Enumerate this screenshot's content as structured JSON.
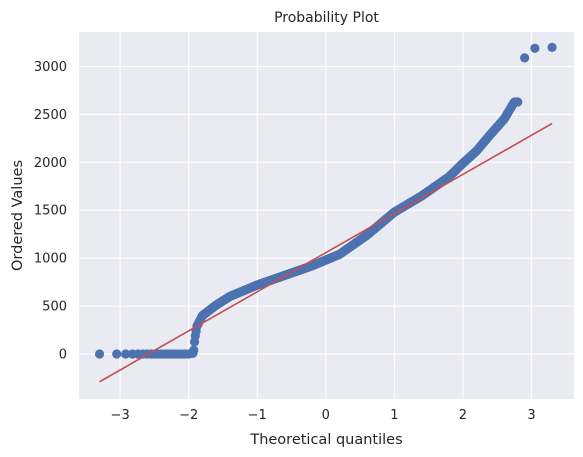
{
  "chart_data": {
    "type": "scatter",
    "title": "Probability Plot",
    "xlabel": "Theoretical quantiles",
    "ylabel": "Ordered Values",
    "xlim": [
      -3.6,
      3.62
    ],
    "ylim": [
      -470,
      3360
    ],
    "x_ticks": [
      -3,
      -2,
      -1,
      0,
      1,
      2,
      3
    ],
    "x_tick_labels": [
      "−3",
      "−2",
      "−1",
      "0",
      "1",
      "2",
      "3"
    ],
    "y_ticks": [
      0,
      500,
      1000,
      1500,
      2000,
      2500,
      3000
    ],
    "y_tick_labels": [
      "0",
      "500",
      "1000",
      "1500",
      "2000",
      "2500",
      "3000"
    ],
    "grid": true,
    "background": "#eaeaf2",
    "marker_color": "#4c72b0",
    "fit_line": {
      "color": "#c44e52",
      "x": [
        -3.3,
        3.3
      ],
      "y": [
        -290,
        2405
      ]
    },
    "curve_knots": [
      [
        -3.3,
        0
      ],
      [
        -2.0,
        0
      ],
      [
        -1.93,
        10
      ],
      [
        -1.91,
        160
      ],
      [
        -1.88,
        290
      ],
      [
        -1.8,
        400
      ],
      [
        -1.6,
        510
      ],
      [
        -1.4,
        600
      ],
      [
        -1.2,
        660
      ],
      [
        -1.0,
        720
      ],
      [
        -0.6,
        820
      ],
      [
        -0.2,
        920
      ],
      [
        0.2,
        1040
      ],
      [
        0.6,
        1240
      ],
      [
        1.0,
        1480
      ],
      [
        1.4,
        1650
      ],
      [
        1.8,
        1850
      ],
      [
        2.0,
        1990
      ],
      [
        2.2,
        2120
      ],
      [
        2.4,
        2290
      ],
      [
        2.6,
        2450
      ],
      [
        2.75,
        2630
      ]
    ],
    "series_points": [
      {
        "x": -3.3,
        "y": 0
      },
      {
        "x": -3.05,
        "y": 0
      },
      {
        "x": -2.92,
        "y": 0
      },
      {
        "x": -2.82,
        "y": 0
      },
      {
        "x": -2.74,
        "y": 0
      },
      {
        "x": -2.67,
        "y": 0
      },
      {
        "x": -2.61,
        "y": 0
      },
      {
        "x": -2.55,
        "y": 0
      },
      {
        "x": -2.5,
        "y": 0
      },
      {
        "x": -2.45,
        "y": 0
      },
      {
        "x": -2.4,
        "y": 0
      },
      {
        "x": -2.35,
        "y": 0
      },
      {
        "x": -2.3,
        "y": 0
      },
      {
        "x": -2.25,
        "y": 0
      },
      {
        "x": -2.2,
        "y": 0
      },
      {
        "x": -2.15,
        "y": 0
      },
      {
        "x": -2.1,
        "y": 0
      },
      {
        "x": -2.05,
        "y": 0
      },
      {
        "x": -2.0,
        "y": 0
      },
      {
        "x": 2.9,
        "y": 3090
      },
      {
        "x": 3.05,
        "y": 3190
      },
      {
        "x": 3.3,
        "y": 3200
      }
    ],
    "dense_range": [
      -1.96,
      2.8
    ],
    "dense_count": 420
  }
}
